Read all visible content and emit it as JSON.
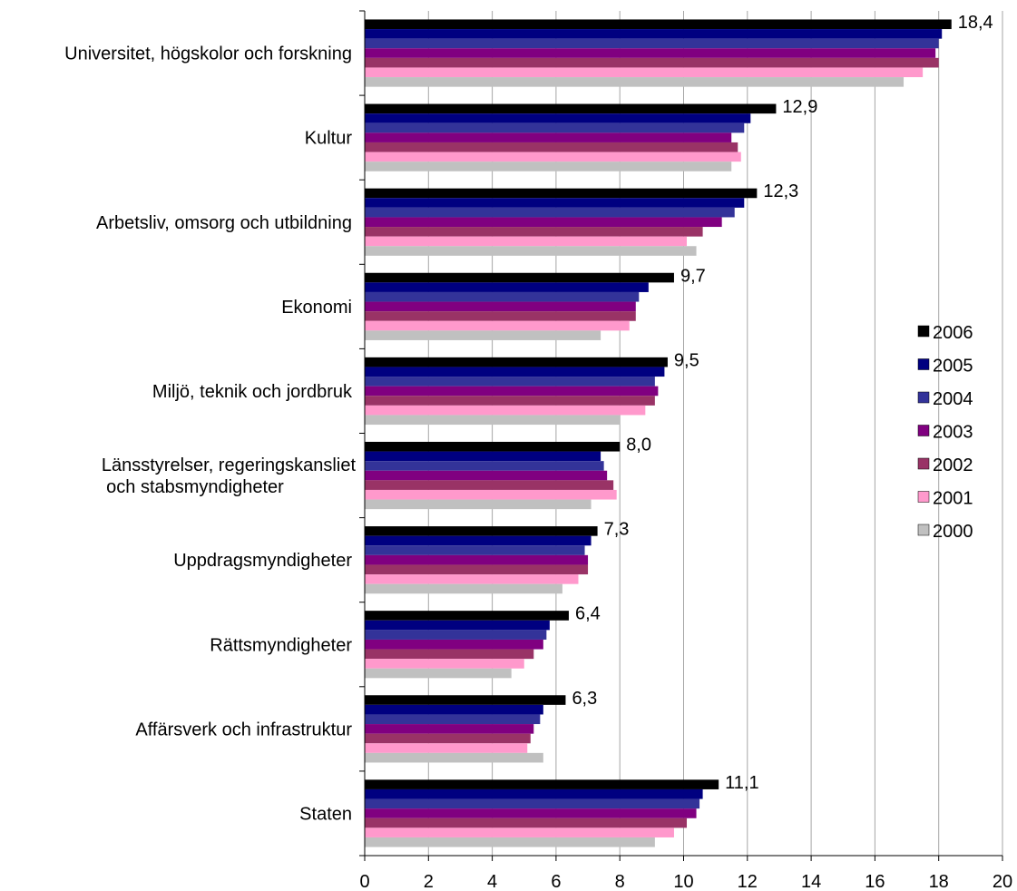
{
  "chart_data": {
    "type": "bar",
    "orientation": "horizontal",
    "title": "",
    "xlabel": "",
    "ylabel": "",
    "xlim": [
      0,
      20
    ],
    "x_ticks": [
      "0",
      "2",
      "4",
      "6",
      "8",
      "10",
      "12",
      "14",
      "16",
      "18",
      "20"
    ],
    "grid": "vertical",
    "legend_position": "right",
    "categories": [
      [
        "Universitet, högskolor och forskning"
      ],
      [
        "Kultur"
      ],
      [
        "Arbetsliv, omsorg och utbildning"
      ],
      [
        "Ekonomi"
      ],
      [
        "Miljö, teknik och jordbruk"
      ],
      [
        "Länsstyrelser, regeringskansliet",
        "och stabsmyndigheter"
      ],
      [
        "Uppdragsmyndigheter"
      ],
      [
        "Rättsmyndigheter"
      ],
      [
        "Affärsverk och infrastruktur"
      ],
      [
        "Staten"
      ]
    ],
    "series": [
      {
        "name": "2006",
        "color": "#000000",
        "values": [
          18.4,
          12.9,
          12.3,
          9.7,
          9.5,
          8.0,
          7.3,
          6.4,
          6.3,
          11.1
        ]
      },
      {
        "name": "2005",
        "color": "#000080",
        "values": [
          18.1,
          12.1,
          11.9,
          8.9,
          9.4,
          7.4,
          7.1,
          5.8,
          5.6,
          10.6
        ]
      },
      {
        "name": "2004",
        "color": "#333399",
        "values": [
          18.0,
          11.9,
          11.6,
          8.6,
          9.1,
          7.5,
          6.9,
          5.7,
          5.5,
          10.5
        ]
      },
      {
        "name": "2003",
        "color": "#800080",
        "values": [
          17.9,
          11.5,
          11.2,
          8.5,
          9.2,
          7.6,
          7.0,
          5.6,
          5.3,
          10.4
        ]
      },
      {
        "name": "2002",
        "color": "#993366",
        "values": [
          18.0,
          11.7,
          10.6,
          8.5,
          9.1,
          7.8,
          7.0,
          5.3,
          5.2,
          10.1
        ]
      },
      {
        "name": "2001",
        "color": "#FF99CC",
        "values": [
          17.5,
          11.8,
          10.1,
          8.3,
          8.8,
          7.9,
          6.7,
          5.0,
          5.1,
          9.7
        ]
      },
      {
        "name": "2000",
        "color": "#C0C0C0",
        "values": [
          16.9,
          11.5,
          10.4,
          7.4,
          8.0,
          7.1,
          6.2,
          4.6,
          5.6,
          9.1
        ]
      }
    ],
    "value_labels": [
      "18,4",
      "12,9",
      "12,3",
      "9,7",
      "9,5",
      "8,0",
      "7,3",
      "6,4",
      "6,3",
      "11,1"
    ]
  }
}
